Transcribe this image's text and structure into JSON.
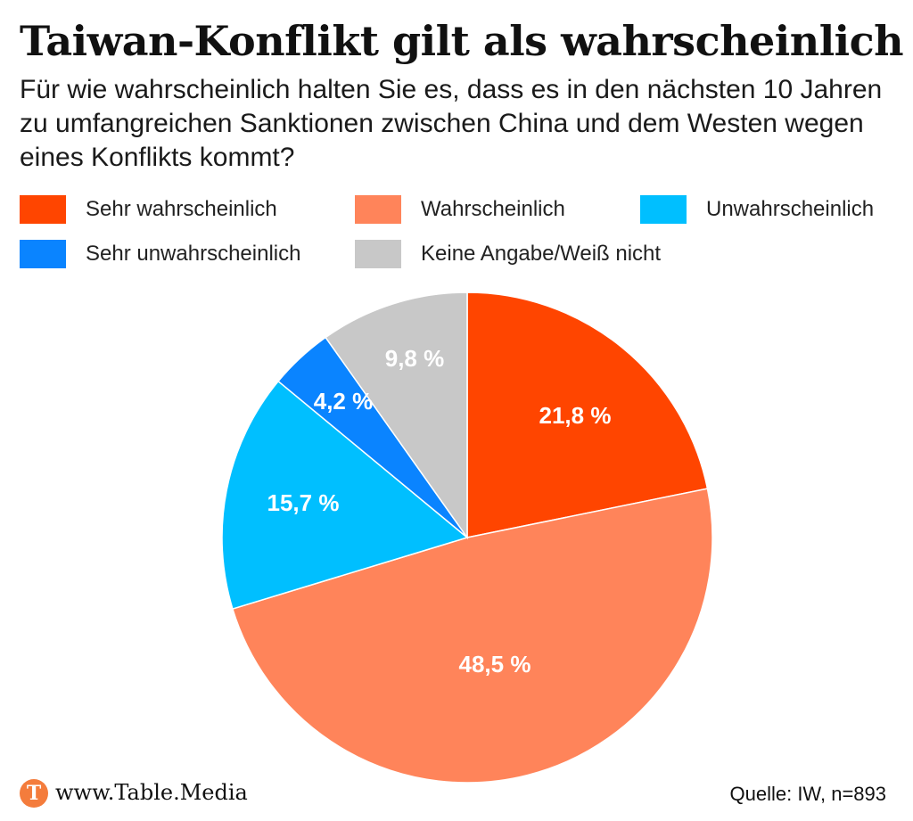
{
  "chart_data": {
    "type": "pie",
    "title": "Taiwan-Konflikt gilt als wahrscheinlich",
    "subtitle": "Für wie wahrscheinlich halten Sie es, dass es in den nächsten 10 Jahren zu umfangreichen Sanktionen zwischen China und dem Westen wegen eines Konflikts kommt?",
    "legend_placement": "top",
    "slices": [
      {
        "name": "Sehr wahrscheinlich",
        "value": 21.8,
        "label": "21,8 %",
        "color": "#ff4500"
      },
      {
        "name": "Wahrscheinlich",
        "value": 48.5,
        "label": "48,5 %",
        "color": "#ff845a"
      },
      {
        "name": "Unwahrscheinlich",
        "value": 15.7,
        "label": "15,7 %",
        "color": "#00bfff"
      },
      {
        "name": "Sehr unwahrscheinlich",
        "value": 4.2,
        "label": "4,2 %",
        "color": "#0a84ff"
      },
      {
        "name": "Keine Angabe/Weiß nicht",
        "value": 9.8,
        "label": "9,8 %",
        "color": "#c8c8c8"
      }
    ]
  },
  "footer": {
    "logo_letter": "T",
    "url": "www.Table.Media",
    "source": "Quelle: IW, n=893"
  }
}
